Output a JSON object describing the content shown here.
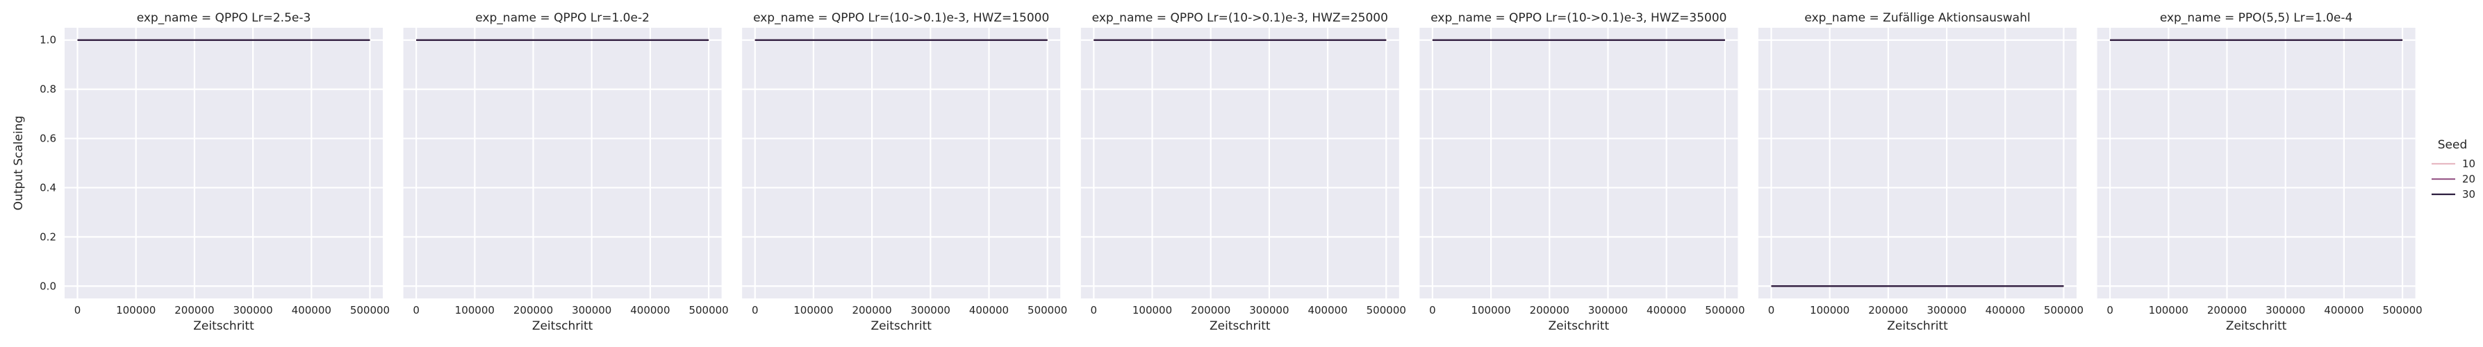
{
  "chart_data": {
    "type": "line",
    "ylabel": "Output Scaleing",
    "xlabel": "Zeitschritt",
    "xlim": [
      -22000,
      522000
    ],
    "ylim": [
      -0.05,
      1.05
    ],
    "xticks": [
      0,
      100000,
      200000,
      300000,
      400000,
      500000
    ],
    "yticks": [
      0.0,
      0.2,
      0.4,
      0.6,
      0.8,
      1.0
    ],
    "xtick_labels": [
      "0",
      "100000",
      "200000",
      "300000",
      "400000",
      "500000"
    ],
    "ytick_labels": [
      "0.0",
      "0.2",
      "0.4",
      "0.6",
      "0.8",
      "1.0"
    ],
    "grid": true,
    "legend": {
      "title": "Seed",
      "placement": "right",
      "entries": [
        {
          "name": "10",
          "color": "#e7b9c3"
        },
        {
          "name": "20",
          "color": "#9a5d8b"
        },
        {
          "name": "30",
          "color": "#2d1e3e"
        }
      ]
    },
    "panels": [
      {
        "title": "exp_name = QPPO Lr=2.5e-3",
        "series": [
          {
            "seed": "10",
            "x": [
              0,
              500000
            ],
            "y": [
              1.0,
              1.0
            ]
          },
          {
            "seed": "20",
            "x": [
              0,
              500000
            ],
            "y": [
              1.0,
              1.0
            ]
          },
          {
            "seed": "30",
            "x": [
              0,
              500000
            ],
            "y": [
              1.0,
              1.0
            ]
          }
        ]
      },
      {
        "title": "exp_name = QPPO Lr=1.0e-2",
        "series": [
          {
            "seed": "10",
            "x": [
              0,
              500000
            ],
            "y": [
              1.0,
              1.0
            ]
          },
          {
            "seed": "20",
            "x": [
              0,
              500000
            ],
            "y": [
              1.0,
              1.0
            ]
          },
          {
            "seed": "30",
            "x": [
              0,
              500000
            ],
            "y": [
              1.0,
              1.0
            ]
          }
        ]
      },
      {
        "title": "exp_name = QPPO Lr=(10->0.1)e-3, HWZ=15000",
        "series": [
          {
            "seed": "10",
            "x": [
              0,
              500000
            ],
            "y": [
              1.0,
              1.0
            ]
          },
          {
            "seed": "20",
            "x": [
              0,
              500000
            ],
            "y": [
              1.0,
              1.0
            ]
          },
          {
            "seed": "30",
            "x": [
              0,
              500000
            ],
            "y": [
              1.0,
              1.0
            ]
          }
        ]
      },
      {
        "title": "exp_name = QPPO Lr=(10->0.1)e-3, HWZ=25000",
        "series": [
          {
            "seed": "10",
            "x": [
              0,
              500000
            ],
            "y": [
              1.0,
              1.0
            ]
          },
          {
            "seed": "20",
            "x": [
              0,
              500000
            ],
            "y": [
              1.0,
              1.0
            ]
          },
          {
            "seed": "30",
            "x": [
              0,
              500000
            ],
            "y": [
              1.0,
              1.0
            ]
          }
        ]
      },
      {
        "title": "exp_name = QPPO Lr=(10->0.1)e-3, HWZ=35000",
        "series": [
          {
            "seed": "10",
            "x": [
              0,
              500000
            ],
            "y": [
              1.0,
              1.0
            ]
          },
          {
            "seed": "20",
            "x": [
              0,
              500000
            ],
            "y": [
              1.0,
              1.0
            ]
          },
          {
            "seed": "30",
            "x": [
              0,
              500000
            ],
            "y": [
              1.0,
              1.0
            ]
          }
        ]
      },
      {
        "title": "exp_name = Zufällige Aktionsauswahl",
        "series": [
          {
            "seed": "10",
            "x": [
              0,
              500000
            ],
            "y": [
              0.0,
              0.0
            ]
          },
          {
            "seed": "20",
            "x": [
              0,
              500000
            ],
            "y": [
              0.0,
              0.0
            ]
          },
          {
            "seed": "30",
            "x": [
              0,
              500000
            ],
            "y": [
              0.0,
              0.0
            ]
          }
        ]
      },
      {
        "title": "exp_name = PPO(5,5) Lr=1.0e-4",
        "series": [
          {
            "seed": "10",
            "x": [
              0,
              500000
            ],
            "y": [
              1.0,
              1.0
            ]
          },
          {
            "seed": "20",
            "x": [
              0,
              500000
            ],
            "y": [
              1.0,
              1.0
            ]
          },
          {
            "seed": "30",
            "x": [
              0,
              500000
            ],
            "y": [
              1.0,
              1.0
            ]
          }
        ]
      }
    ]
  }
}
